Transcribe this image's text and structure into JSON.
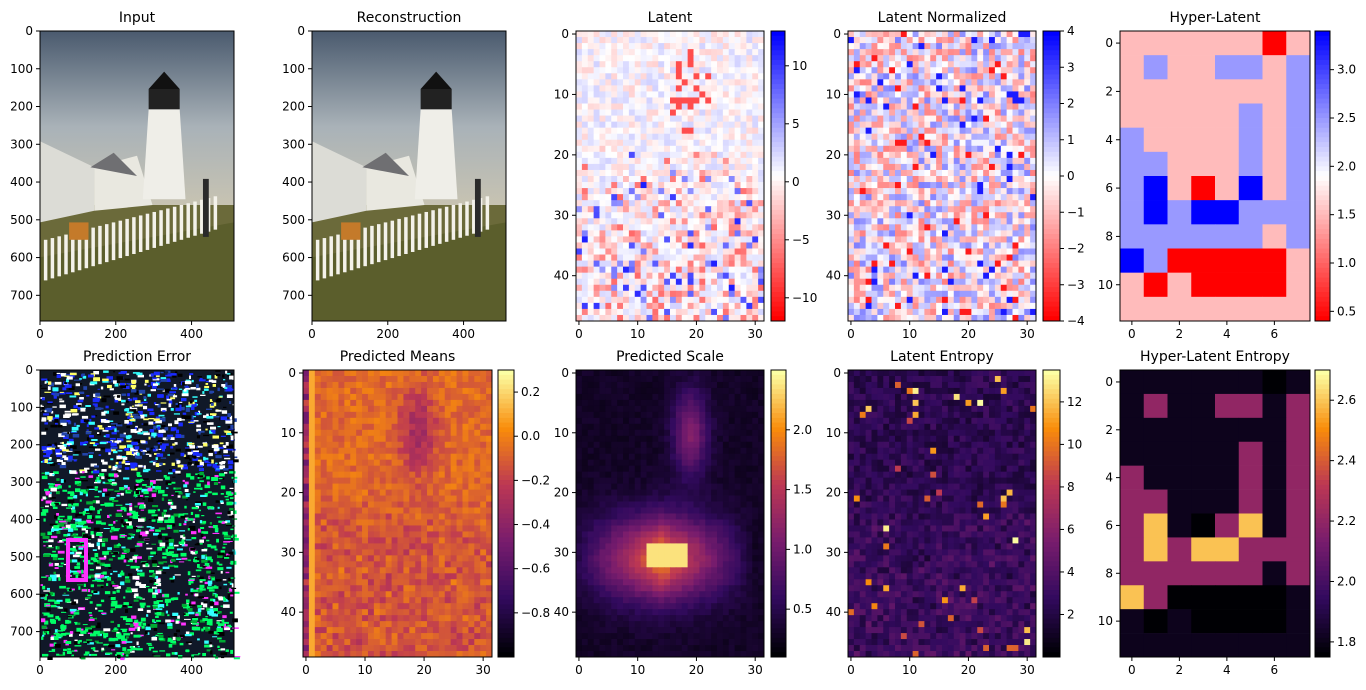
{
  "figure": {
    "panels": [
      {
        "title": "Input",
        "kind": "photo",
        "variant": "color"
      },
      {
        "title": "Reconstruction",
        "kind": "photo",
        "variant": "color"
      },
      {
        "title": "Latent",
        "kind": "heat",
        "cmap": "bwr_r",
        "seed": 11,
        "colorbar_ticks": [
          "10",
          "5",
          "0",
          "−5",
          "−10"
        ]
      },
      {
        "title": "Latent Normalized",
        "kind": "heat",
        "cmap": "bwr_r",
        "seed": 23,
        "colorbar_ticks": [
          "4",
          "3",
          "2",
          "1",
          "0",
          "−1",
          "−2",
          "−3",
          "−4"
        ]
      },
      {
        "title": "Hyper-Latent",
        "kind": "hyper",
        "cmap": "bwr_r",
        "colorbar_ticks": [
          "3.0",
          "2.5",
          "2.0",
          "1.5",
          "1.0",
          "0.5"
        ]
      },
      {
        "title": "Prediction Error",
        "kind": "photo",
        "variant": "error"
      },
      {
        "title": "Predicted Means",
        "kind": "heat",
        "cmap": "inferno",
        "seed": 37,
        "colorbar_ticks": [
          "0.2",
          "0.0",
          "−0.2",
          "−0.4",
          "−0.6",
          "−0.8"
        ]
      },
      {
        "title": "Predicted Scale",
        "kind": "heat",
        "cmap": "inferno",
        "seed": 41,
        "colorbar_ticks": [
          "2.0",
          "1.5",
          "1.0",
          "0.5"
        ]
      },
      {
        "title": "Latent Entropy",
        "kind": "heat",
        "cmap": "inferno",
        "seed": 53,
        "colorbar_ticks": [
          "12",
          "10",
          "8",
          "6",
          "4",
          "2"
        ]
      },
      {
        "title": "Hyper-Latent Entropy",
        "kind": "hyper",
        "cmap": "inferno",
        "colorbar_ticks": [
          "2.6",
          "2.4",
          "2.2",
          "2.0",
          "1.8"
        ]
      }
    ]
  },
  "chart_data": [
    {
      "type": "heatmap",
      "title": "Input",
      "x_ticks": [
        "0",
        "200",
        "400"
      ],
      "y_ticks": [
        "0",
        "100",
        "200",
        "300",
        "400",
        "500",
        "600",
        "700"
      ],
      "xlim": [
        0,
        512
      ],
      "ylim": [
        768,
        0
      ]
    },
    {
      "type": "heatmap",
      "title": "Reconstruction",
      "x_ticks": [
        "0",
        "200",
        "400"
      ],
      "y_ticks": [
        "0",
        "100",
        "200",
        "300",
        "400",
        "500",
        "600",
        "700"
      ],
      "xlim": [
        0,
        512
      ],
      "ylim": [
        768,
        0
      ]
    },
    {
      "type": "heatmap",
      "title": "Latent",
      "x_ticks": [
        "0",
        "10",
        "20",
        "30"
      ],
      "y_ticks": [
        "0",
        "10",
        "20",
        "30",
        "40"
      ],
      "xlim": [
        -0.5,
        31.5
      ],
      "ylim": [
        47.5,
        -0.5
      ],
      "colorbar_range": [
        -12,
        13
      ]
    },
    {
      "type": "heatmap",
      "title": "Latent Normalized",
      "x_ticks": [
        "0",
        "10",
        "20",
        "30"
      ],
      "y_ticks": [
        "0",
        "10",
        "20",
        "30",
        "40"
      ],
      "xlim": [
        -0.5,
        31.5
      ],
      "ylim": [
        47.5,
        -0.5
      ],
      "colorbar_range": [
        -4,
        4
      ]
    },
    {
      "type": "heatmap",
      "title": "Hyper-Latent",
      "x_ticks": [
        "0",
        "2",
        "4",
        "6"
      ],
      "y_ticks": [
        "0",
        "2",
        "4",
        "6",
        "8",
        "10"
      ],
      "xlim": [
        -0.5,
        7.5
      ],
      "ylim": [
        11.5,
        -0.5
      ],
      "colorbar_range": [
        0.4,
        3.4
      ],
      "values": [
        [
          1.5,
          1.5,
          1.5,
          1.5,
          1.5,
          1.5,
          0.4,
          1.5
        ],
        [
          1.5,
          2.5,
          1.5,
          1.5,
          2.5,
          2.5,
          1.5,
          2.5
        ],
        [
          1.5,
          1.5,
          1.5,
          1.5,
          1.5,
          1.5,
          1.5,
          2.5
        ],
        [
          1.5,
          1.5,
          1.5,
          1.5,
          1.5,
          2.5,
          1.5,
          2.5
        ],
        [
          2.5,
          1.5,
          1.5,
          1.5,
          1.5,
          2.5,
          1.5,
          2.5
        ],
        [
          2.5,
          2.5,
          1.5,
          1.5,
          1.5,
          2.5,
          1.5,
          2.5
        ],
        [
          2.5,
          3.4,
          1.5,
          0.4,
          1.5,
          3.4,
          1.5,
          2.5
        ],
        [
          2.5,
          3.4,
          2.5,
          3.4,
          3.4,
          2.5,
          2.5,
          2.5
        ],
        [
          2.5,
          2.5,
          2.5,
          2.5,
          2.5,
          2.5,
          1.5,
          2.5
        ],
        [
          3.4,
          2.5,
          0.4,
          0.4,
          0.4,
          0.4,
          0.4,
          1.5
        ],
        [
          1.5,
          0.4,
          1.5,
          0.4,
          0.4,
          0.4,
          0.4,
          1.5
        ],
        [
          1.5,
          1.5,
          1.5,
          1.5,
          1.5,
          1.5,
          1.5,
          1.5
        ]
      ]
    },
    {
      "type": "heatmap",
      "title": "Prediction Error",
      "x_ticks": [
        "0",
        "200",
        "400"
      ],
      "y_ticks": [
        "0",
        "100",
        "200",
        "300",
        "400",
        "500",
        "600",
        "700"
      ],
      "xlim": [
        0,
        512
      ],
      "ylim": [
        768,
        0
      ]
    },
    {
      "type": "heatmap",
      "title": "Predicted Means",
      "x_ticks": [
        "0",
        "10",
        "20",
        "30"
      ],
      "y_ticks": [
        "0",
        "10",
        "20",
        "30",
        "40"
      ],
      "xlim": [
        -0.5,
        31.5
      ],
      "ylim": [
        47.5,
        -0.5
      ],
      "colorbar_range": [
        -1.0,
        0.3
      ]
    },
    {
      "type": "heatmap",
      "title": "Predicted Scale",
      "x_ticks": [
        "0",
        "10",
        "20",
        "30"
      ],
      "y_ticks": [
        "0",
        "10",
        "20",
        "30",
        "40"
      ],
      "xlim": [
        -0.5,
        31.5
      ],
      "ylim": [
        47.5,
        -0.5
      ],
      "colorbar_range": [
        0.1,
        2.5
      ]
    },
    {
      "type": "heatmap",
      "title": "Latent Entropy",
      "x_ticks": [
        "0",
        "10",
        "20",
        "30"
      ],
      "y_ticks": [
        "0",
        "10",
        "20",
        "30",
        "40"
      ],
      "xlim": [
        -0.5,
        31.5
      ],
      "ylim": [
        47.5,
        -0.5
      ],
      "colorbar_range": [
        0,
        13.5
      ]
    },
    {
      "type": "heatmap",
      "title": "Hyper-Latent Entropy",
      "x_ticks": [
        "0",
        "2",
        "4",
        "6"
      ],
      "y_ticks": [
        "0",
        "2",
        "4",
        "6",
        "8",
        "10"
      ],
      "xlim": [
        -0.5,
        7.5
      ],
      "ylim": [
        11.5,
        -0.5
      ],
      "colorbar_range": [
        1.75,
        2.7
      ],
      "values": [
        [
          1.8,
          1.8,
          1.8,
          1.8,
          1.8,
          1.8,
          1.75,
          1.8
        ],
        [
          1.8,
          2.2,
          1.8,
          1.8,
          2.2,
          2.2,
          1.8,
          2.2
        ],
        [
          1.8,
          1.8,
          1.8,
          1.8,
          1.8,
          1.8,
          1.8,
          2.2
        ],
        [
          1.8,
          1.8,
          1.8,
          1.8,
          1.8,
          2.2,
          1.8,
          2.2
        ],
        [
          2.2,
          1.8,
          1.8,
          1.8,
          1.8,
          2.2,
          1.8,
          2.2
        ],
        [
          2.2,
          2.2,
          1.8,
          1.8,
          1.8,
          2.2,
          1.8,
          2.2
        ],
        [
          2.2,
          2.6,
          1.8,
          1.75,
          2.2,
          2.6,
          1.8,
          2.2
        ],
        [
          2.2,
          2.6,
          2.2,
          2.6,
          2.6,
          2.2,
          2.2,
          2.2
        ],
        [
          2.2,
          2.2,
          2.2,
          2.2,
          2.2,
          2.2,
          1.8,
          2.2
        ],
        [
          2.6,
          2.2,
          1.75,
          1.75,
          1.75,
          1.75,
          1.75,
          1.8
        ],
        [
          1.8,
          1.75,
          1.8,
          1.75,
          1.75,
          1.75,
          1.75,
          1.8
        ],
        [
          1.8,
          1.8,
          1.8,
          1.8,
          1.8,
          1.8,
          1.8,
          1.8
        ]
      ]
    }
  ]
}
